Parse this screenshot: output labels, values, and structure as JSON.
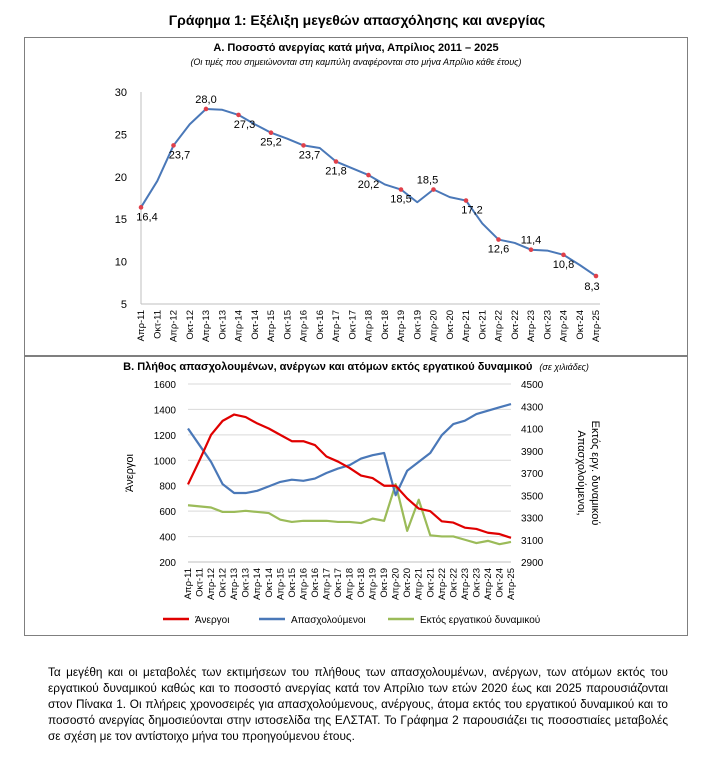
{
  "title": "Γράφημα 1: Εξέλιξη μεγεθών απασχόλησης και ανεργίας",
  "chart_data": [
    {
      "type": "line",
      "title": "Α. Ποσοστό ανεργίας κατά μήνα, Απρίλιος 2011 – 2025",
      "subtitle": "(Οι τιμές που σημειώνονται στη καμπύλη αναφέρονται στο μήνα Απρίλιο κάθε έτους)",
      "ylim": [
        5,
        30
      ],
      "yticks": [
        5,
        10,
        15,
        20,
        25,
        30
      ],
      "categories": [
        "Απρ-11",
        "Οκτ-11",
        "Απρ-12",
        "Οκτ-12",
        "Απρ-13",
        "Οκτ-13",
        "Απρ-14",
        "Οκτ-14",
        "Απρ-15",
        "Οκτ-15",
        "Απρ-16",
        "Οκτ-16",
        "Απρ-17",
        "Οκτ-17",
        "Απρ-18",
        "Οκτ-18",
        "Απρ-19",
        "Οκτ-19",
        "Απρ-20",
        "Οκτ-20",
        "Απρ-21",
        "Οκτ-21",
        "Απρ-22",
        "Οκτ-22",
        "Απρ-23",
        "Οκτ-23",
        "Απρ-24",
        "Οκτ-24",
        "Απρ-25"
      ],
      "series": [
        {
          "color": "#4a78b8",
          "values": [
            16.4,
            19.5,
            23.7,
            26.2,
            28.0,
            27.9,
            27.3,
            26.2,
            25.2,
            24.5,
            23.7,
            23.4,
            21.8,
            21.0,
            20.2,
            19.1,
            18.5,
            17.0,
            18.5,
            17.6,
            17.2,
            14.5,
            12.6,
            12.2,
            11.4,
            11.3,
            10.8,
            9.6,
            8.3
          ]
        }
      ],
      "annotations": [
        {
          "x": "Απρ-11",
          "value": 16.4,
          "label": "16,4"
        },
        {
          "x": "Απρ-12",
          "value": 23.7,
          "label": "23,7"
        },
        {
          "x": "Απρ-13",
          "value": 28.0,
          "label": "28,0"
        },
        {
          "x": "Απρ-14",
          "value": 27.3,
          "label": "27,3"
        },
        {
          "x": "Απρ-15",
          "value": 25.2,
          "label": "25,2"
        },
        {
          "x": "Απρ-16",
          "value": 23.7,
          "label": "23,7"
        },
        {
          "x": "Απρ-17",
          "value": 21.8,
          "label": "21,8"
        },
        {
          "x": "Απρ-18",
          "value": 20.2,
          "label": "20,2"
        },
        {
          "x": "Απρ-19",
          "value": 18.5,
          "label": "18,5"
        },
        {
          "x": "Απρ-20",
          "value": 18.5,
          "label": "18,5"
        },
        {
          "x": "Απρ-21",
          "value": 17.2,
          "label": "17,2"
        },
        {
          "x": "Απρ-22",
          "value": 12.6,
          "label": "12,6"
        },
        {
          "x": "Απρ-23",
          "value": 11.4,
          "label": "11,4"
        },
        {
          "x": "Απρ-24",
          "value": 10.8,
          "label": "10,8"
        },
        {
          "x": "Απρ-25",
          "value": 8.3,
          "label": "8,3"
        }
      ],
      "marker_color": "#e0404a"
    },
    {
      "type": "line",
      "title": "Β. Πλήθος απασχολουμένων, ανέργων και ατόμων εκτός εργατικού δυναμικού",
      "title_note": "(σε χιλιάδες)",
      "ylabel": "Άνεργοι",
      "ylabel_right": [
        "Απασχολούμενοι,",
        "Εκτός εργ. δυναμικού"
      ],
      "ylim": [
        200,
        1600
      ],
      "yticks": [
        200,
        400,
        600,
        800,
        1000,
        1200,
        1400,
        1600
      ],
      "ylim_right": [
        2900,
        4500
      ],
      "yticks_right": [
        2900,
        3100,
        3300,
        3500,
        3700,
        3900,
        4100,
        4300,
        4500
      ],
      "categories": [
        "Απρ-11",
        "Οκτ-11",
        "Απρ-12",
        "Οκτ-12",
        "Απρ-13",
        "Οκτ-13",
        "Απρ-14",
        "Οκτ-14",
        "Απρ-15",
        "Οκτ-15",
        "Απρ-16",
        "Οκτ-16",
        "Απρ-17",
        "Οκτ-17",
        "Απρ-18",
        "Οκτ-18",
        "Απρ-19",
        "Οκτ-19",
        "Απρ-20",
        "Οκτ-20",
        "Απρ-21",
        "Οκτ-21",
        "Απρ-22",
        "Οκτ-22",
        "Απρ-23",
        "Οκτ-23",
        "Απρ-24",
        "Οκτ-24",
        "Απρ-25"
      ],
      "series": [
        {
          "name": "Άνεργοι",
          "axis": "left",
          "color": "#e00000",
          "values": [
            810,
            1000,
            1200,
            1310,
            1360,
            1340,
            1290,
            1250,
            1200,
            1150,
            1150,
            1120,
            1030,
            990,
            940,
            880,
            860,
            800,
            800,
            700,
            620,
            600,
            520,
            510,
            470,
            460,
            430,
            420,
            390
          ]
        },
        {
          "name": "Απασχολούμενοι",
          "axis": "right",
          "color": "#4a78b8",
          "values": [
            4100,
            3950,
            3800,
            3600,
            3520,
            3520,
            3540,
            3580,
            3620,
            3640,
            3630,
            3650,
            3700,
            3740,
            3770,
            3830,
            3860,
            3880,
            3500,
            3720,
            3800,
            3880,
            4040,
            4140,
            4170,
            4230,
            4260,
            4290,
            4320
          ]
        },
        {
          "name": "Εκτός εργατικού δυναμικού",
          "axis": "right",
          "color": "#9bbb59",
          "values": [
            3410,
            3400,
            3390,
            3350,
            3350,
            3360,
            3350,
            3340,
            3280,
            3260,
            3270,
            3270,
            3270,
            3260,
            3260,
            3250,
            3290,
            3270,
            3600,
            3180,
            3460,
            3140,
            3130,
            3130,
            3100,
            3070,
            3090,
            3060,
            3080
          ]
        }
      ],
      "legend_position": "bottom"
    }
  ],
  "paragraph": "Τα μεγέθη και οι μεταβολές των εκτιμήσεων του πλήθους των απασχολουμένων, ανέργων, των ατόμων εκτός του εργατικού δυναμικού καθώς και το ποσοστό ανεργίας κατά τον Απρίλιο των ετών 2020 έως και 2025 παρουσιάζονται στον Πίνακα 1. Οι πλήρεις χρονοσειρές για απασχολούμενους, ανέργους, άτομα εκτός του εργατικού δυναμικού και το ποσοστό ανεργίας δημοσιεύονται στην ιστοσελίδα της ΕΛΣΤΑΤ. Το Γράφημα 2 παρουσιάζει τις ποσοστιαίες μεταβολές σε σχέση με τον αντίστοιχο μήνα του προηγούμενου έτους."
}
